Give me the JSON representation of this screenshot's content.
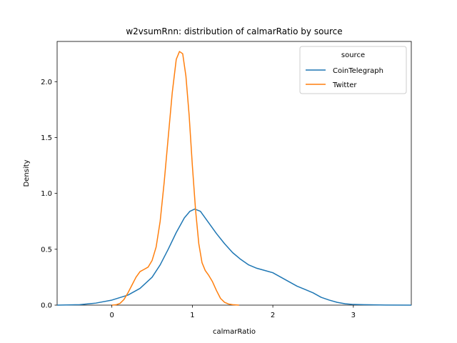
{
  "chart_data": {
    "type": "line",
    "title": "w2vsumRnn: distribution of calmarRatio by source",
    "xlabel": "calmarRatio",
    "ylabel": "Density",
    "xlim": [
      -0.68,
      3.72
    ],
    "ylim": [
      0,
      2.36
    ],
    "xticks": [
      0,
      1,
      2,
      3
    ],
    "yticks": [
      0.0,
      0.5,
      1.0,
      1.5,
      2.0
    ],
    "xtick_labels": [
      "0",
      "1",
      "2",
      "3"
    ],
    "ytick_labels": [
      "0.0",
      "0.5",
      "1.0",
      "1.5",
      "2.0"
    ],
    "grid": false,
    "legend": {
      "title": "source",
      "position": "top-right"
    },
    "series": [
      {
        "name": "CoinTelegraph",
        "color": "#1f77b4",
        "points": [
          [
            -0.68,
            0.0
          ],
          [
            -0.4,
            0.004
          ],
          [
            -0.2,
            0.018
          ],
          [
            0.0,
            0.045
          ],
          [
            0.2,
            0.09
          ],
          [
            0.35,
            0.15
          ],
          [
            0.5,
            0.25
          ],
          [
            0.6,
            0.36
          ],
          [
            0.7,
            0.5
          ],
          [
            0.8,
            0.65
          ],
          [
            0.9,
            0.78
          ],
          [
            0.97,
            0.84
          ],
          [
            1.03,
            0.86
          ],
          [
            1.1,
            0.84
          ],
          [
            1.2,
            0.74
          ],
          [
            1.3,
            0.64
          ],
          [
            1.4,
            0.55
          ],
          [
            1.5,
            0.47
          ],
          [
            1.6,
            0.41
          ],
          [
            1.7,
            0.36
          ],
          [
            1.8,
            0.33
          ],
          [
            1.9,
            0.31
          ],
          [
            2.0,
            0.29
          ],
          [
            2.1,
            0.25
          ],
          [
            2.2,
            0.21
          ],
          [
            2.3,
            0.17
          ],
          [
            2.4,
            0.14
          ],
          [
            2.5,
            0.11
          ],
          [
            2.6,
            0.07
          ],
          [
            2.7,
            0.045
          ],
          [
            2.8,
            0.025
          ],
          [
            2.9,
            0.012
          ],
          [
            3.0,
            0.006
          ],
          [
            3.2,
            0.003
          ],
          [
            3.4,
            0.001
          ],
          [
            3.72,
            0.0
          ]
        ]
      },
      {
        "name": "Twitter",
        "color": "#ff7f0e",
        "points": [
          [
            0.0,
            0.0
          ],
          [
            0.05,
            0.003
          ],
          [
            0.1,
            0.015
          ],
          [
            0.15,
            0.05
          ],
          [
            0.2,
            0.11
          ],
          [
            0.25,
            0.18
          ],
          [
            0.3,
            0.25
          ],
          [
            0.35,
            0.3
          ],
          [
            0.4,
            0.32
          ],
          [
            0.45,
            0.34
          ],
          [
            0.5,
            0.4
          ],
          [
            0.55,
            0.52
          ],
          [
            0.6,
            0.75
          ],
          [
            0.65,
            1.1
          ],
          [
            0.7,
            1.5
          ],
          [
            0.75,
            1.9
          ],
          [
            0.8,
            2.2
          ],
          [
            0.84,
            2.27
          ],
          [
            0.88,
            2.25
          ],
          [
            0.92,
            2.05
          ],
          [
            0.96,
            1.7
          ],
          [
            1.0,
            1.25
          ],
          [
            1.04,
            0.85
          ],
          [
            1.08,
            0.55
          ],
          [
            1.12,
            0.38
          ],
          [
            1.16,
            0.31
          ],
          [
            1.2,
            0.27
          ],
          [
            1.25,
            0.21
          ],
          [
            1.3,
            0.13
          ],
          [
            1.35,
            0.06
          ],
          [
            1.4,
            0.025
          ],
          [
            1.45,
            0.01
          ],
          [
            1.5,
            0.004
          ],
          [
            1.58,
            0.0
          ]
        ]
      }
    ]
  }
}
